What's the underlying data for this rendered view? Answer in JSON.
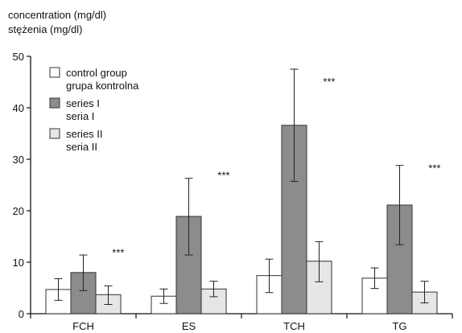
{
  "chart_data": {
    "type": "bar",
    "ylabel_line1": "concentration (mg/dl)",
    "ylabel_line2": "stężenia (mg/dl)",
    "ylim": [
      0,
      50
    ],
    "yticks": [
      0,
      10,
      20,
      30,
      40,
      50
    ],
    "grid": false,
    "legend_placement": "top-left",
    "categories": [
      "FCH",
      "ES",
      "TCH",
      "TG"
    ],
    "series": [
      {
        "name": "control group",
        "name_alt": "grupa kontrolna",
        "color": "#ffffff",
        "values": [
          4.7,
          3.4,
          7.4,
          6.9
        ],
        "err_low": [
          2.6,
          2.0,
          4.1,
          4.9
        ],
        "err_high": [
          6.8,
          4.8,
          10.6,
          8.9
        ]
      },
      {
        "name": "series I",
        "name_alt": "seria I",
        "color": "#8c8c8c",
        "values": [
          8.0,
          18.9,
          36.6,
          21.1
        ],
        "err_low": [
          4.5,
          11.4,
          25.7,
          13.4
        ],
        "err_high": [
          11.4,
          26.3,
          47.5,
          28.8
        ]
      },
      {
        "name": "series II",
        "name_alt": "seria II",
        "color": "#e6e6e6",
        "values": [
          3.7,
          4.8,
          10.2,
          4.2
        ],
        "err_low": [
          1.8,
          3.3,
          6.2,
          2.1
        ],
        "err_high": [
          5.4,
          6.3,
          14.0,
          6.3
        ]
      }
    ],
    "annotations": [
      {
        "category": "FCH",
        "text": "***",
        "y": 12.4
      },
      {
        "category": "ES",
        "text": "***",
        "y": 27.4
      },
      {
        "category": "TCH",
        "text": "***",
        "y": 45.6
      },
      {
        "category": "TG",
        "text": "***",
        "y": 28.8
      }
    ],
    "colors": {
      "axis": "#111111",
      "outline": "#333333"
    }
  }
}
